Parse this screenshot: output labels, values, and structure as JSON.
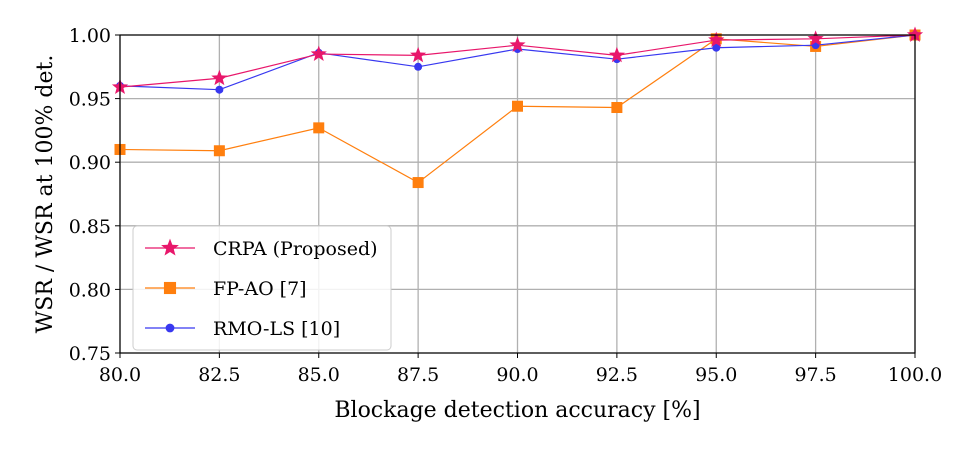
{
  "chart_data": {
    "type": "line",
    "title": "",
    "xlabel": "Blockage detection accuracy [%]",
    "ylabel": "WSR / WSR at 100% det.",
    "x": [
      80.0,
      82.5,
      85.0,
      87.5,
      90.0,
      92.5,
      95.0,
      97.5,
      100.0
    ],
    "xticks": [
      "80.0",
      "82.5",
      "85.0",
      "87.5",
      "90.0",
      "92.5",
      "95.0",
      "97.5",
      "100.0"
    ],
    "yticks": [
      "0.75",
      "0.80",
      "0.85",
      "0.90",
      "0.95",
      "1.00"
    ],
    "xlim": [
      80.0,
      100.0
    ],
    "ylim": [
      0.75,
      1.0
    ],
    "grid": true,
    "legend_position": "lower-left",
    "series": [
      {
        "name": "CRPA (Proposed)",
        "color": "#e8176b",
        "marker": "star",
        "values": [
          0.959,
          0.966,
          0.985,
          0.984,
          0.992,
          0.984,
          0.996,
          0.997,
          1.0
        ]
      },
      {
        "name": "FP-AO [7]",
        "color": "#ff7f0e",
        "marker": "square",
        "values": [
          0.91,
          0.909,
          0.927,
          0.884,
          0.944,
          0.943,
          0.997,
          0.991,
          1.0
        ]
      },
      {
        "name": "RMO-LS [10]",
        "color": "#3838f0",
        "marker": "circle",
        "values": [
          0.96,
          0.957,
          0.986,
          0.975,
          0.989,
          0.981,
          0.99,
          0.992,
          1.0
        ]
      }
    ]
  }
}
